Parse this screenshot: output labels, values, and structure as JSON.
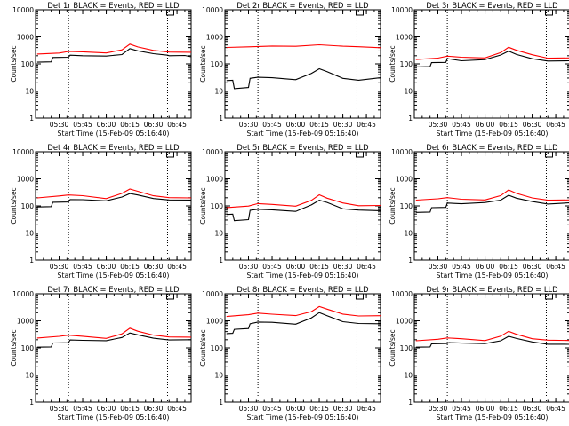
{
  "figure": {
    "colors": {
      "events": "#000000",
      "lld": "#ff0000",
      "axis": "#000000",
      "background": "#ffffff"
    }
  },
  "chart_data": [
    {
      "type": "line",
      "title": "Det 1r BLACK = Events, RED = LLD",
      "xlabel": "Start Time (15-Feb-09 05:16:40)",
      "ylabel": "Counts/sec",
      "yscale": "log",
      "ylim": [
        1,
        10000
      ],
      "yticks": [
        "1",
        "10",
        "100",
        "1000",
        "10000"
      ],
      "xlim": [
        5.25,
        6.9
      ],
      "xticks": [
        "05:30",
        "05:45",
        "06:00",
        "06:15",
        "06:30",
        "06:45"
      ],
      "dotted_vlines": [
        "05:36",
        "06:39"
      ],
      "series": [
        {
          "x": [
            "05:16",
            "05:25",
            "05:26",
            "05:36",
            "05:37",
            "05:45",
            "06:00",
            "06:10",
            "06:15",
            "06:20",
            "06:30",
            "06:39",
            "06:40",
            "06:50",
            "06:54"
          ],
          "values": [
            120,
            120,
            170,
            170,
            215,
            200,
            190,
            230,
            370,
            300,
            230,
            215,
            200,
            200,
            190
          ]
        },
        {
          "x": [
            "05:16",
            "05:30",
            "05:36",
            "05:45",
            "06:00",
            "06:10",
            "06:15",
            "06:20",
            "06:30",
            "06:40",
            "06:54"
          ],
          "values": [
            240,
            255,
            285,
            270,
            260,
            330,
            520,
            440,
            320,
            270,
            260
          ]
        }
      ]
    },
    {
      "type": "line",
      "title": "Det 2r BLACK = Events, RED = LLD",
      "xlabel": "Start Time (15-Feb-09 05:16:40)",
      "ylabel": "Counts/sec",
      "yscale": "log",
      "ylim": [
        1,
        10000
      ],
      "yticks": [
        "1",
        "10",
        "100",
        "1000",
        "10000"
      ],
      "xlim": [
        5.25,
        6.9
      ],
      "xticks": [
        "05:30",
        "05:45",
        "06:00",
        "06:15",
        "06:30",
        "06:45"
      ],
      "dotted_vlines": [
        "05:36",
        "06:39"
      ],
      "series": [
        {
          "x": [
            "05:16",
            "05:20",
            "05:21",
            "05:30",
            "05:31",
            "05:36",
            "05:45",
            "06:00",
            "06:10",
            "06:15",
            "06:20",
            "06:30",
            "06:40",
            "06:54"
          ],
          "values": [
            25,
            25,
            12,
            13,
            30,
            32,
            30,
            27,
            45,
            65,
            50,
            30,
            25,
            30
          ]
        },
        {
          "x": [
            "05:16",
            "05:30",
            "05:45",
            "06:00",
            "06:15",
            "06:30",
            "06:40",
            "06:54"
          ],
          "values": [
            420,
            430,
            450,
            430,
            520,
            450,
            420,
            410
          ]
        }
      ]
    },
    {
      "type": "line",
      "title": "Det 3r BLACK = Events, RED = LLD",
      "xlabel": "Start Time (15-Feb-09 05:16:40)",
      "ylabel": "Counts/sec",
      "yscale": "log",
      "ylim": [
        1,
        10000
      ],
      "yticks": [
        "1",
        "10",
        "100",
        "1000",
        "10000"
      ],
      "xlim": [
        5.25,
        6.9
      ],
      "xticks": [
        "05:30",
        "05:45",
        "06:00",
        "06:15",
        "06:30",
        "06:45"
      ],
      "dotted_vlines": [
        "05:36",
        "06:39"
      ],
      "series": [
        {
          "x": [
            "05:16",
            "05:25",
            "05:26",
            "05:35",
            "05:36",
            "05:45",
            "06:00",
            "06:10",
            "06:15",
            "06:20",
            "06:30",
            "06:40",
            "06:54"
          ],
          "values": [
            80,
            80,
            110,
            110,
            160,
            130,
            140,
            220,
            300,
            220,
            150,
            130,
            130
          ]
        },
        {
          "x": [
            "05:16",
            "05:30",
            "05:36",
            "05:45",
            "06:00",
            "06:10",
            "06:15",
            "06:20",
            "06:30",
            "06:40",
            "06:54"
          ],
          "values": [
            150,
            165,
            190,
            170,
            170,
            260,
            400,
            330,
            220,
            160,
            160
          ]
        }
      ]
    },
    {
      "type": "line",
      "title": "Det 4r BLACK = Events, RED = LLD",
      "xlabel": "Start Time (15-Feb-09 05:16:40)",
      "ylabel": "Counts/sec",
      "yscale": "log",
      "ylim": [
        1,
        10000
      ],
      "yticks": [
        "1",
        "10",
        "100",
        "1000",
        "10000"
      ],
      "xlim": [
        5.25,
        6.9
      ],
      "xticks": [
        "05:30",
        "05:45",
        "06:00",
        "06:15",
        "06:30",
        "06:45"
      ],
      "dotted_vlines": [
        "05:36",
        "06:39"
      ],
      "series": [
        {
          "x": [
            "05:16",
            "05:25",
            "05:26",
            "05:36",
            "05:37",
            "05:45",
            "06:00",
            "06:10",
            "06:15",
            "06:20",
            "06:30",
            "06:40",
            "06:54"
          ],
          "values": [
            95,
            95,
            135,
            135,
            175,
            170,
            150,
            220,
            290,
            250,
            180,
            170,
            165
          ]
        },
        {
          "x": [
            "05:16",
            "05:30",
            "05:36",
            "05:45",
            "06:00",
            "06:10",
            "06:15",
            "06:20",
            "06:30",
            "06:40",
            "06:54"
          ],
          "values": [
            205,
            235,
            250,
            230,
            190,
            290,
            410,
            360,
            240,
            200,
            190
          ]
        }
      ]
    },
    {
      "type": "line",
      "title": "Det 5r BLACK = Events, RED = LLD",
      "xlabel": "Start Time (15-Feb-09 05:16:40)",
      "ylabel": "Counts/sec",
      "yscale": "log",
      "ylim": [
        1,
        10000
      ],
      "yticks": [
        "1",
        "10",
        "100",
        "1000",
        "10000"
      ],
      "xlim": [
        5.25,
        6.9
      ],
      "xticks": [
        "05:30",
        "05:45",
        "06:00",
        "06:15",
        "06:30",
        "06:45"
      ],
      "dotted_vlines": [
        "05:36",
        "06:39"
      ],
      "series": [
        {
          "x": [
            "05:16",
            "05:20",
            "05:21",
            "05:30",
            "05:31",
            "05:36",
            "05:45",
            "06:00",
            "06:10",
            "06:15",
            "06:20",
            "06:30",
            "06:40",
            "06:54"
          ],
          "values": [
            50,
            50,
            28,
            30,
            70,
            75,
            70,
            65,
            110,
            160,
            130,
            80,
            70,
            65
          ]
        },
        {
          "x": [
            "05:16",
            "05:30",
            "05:36",
            "05:45",
            "06:00",
            "06:10",
            "06:15",
            "06:20",
            "06:30",
            "06:40",
            "06:54"
          ],
          "values": [
            90,
            100,
            120,
            110,
            100,
            160,
            250,
            200,
            130,
            100,
            100
          ]
        }
      ]
    },
    {
      "type": "line",
      "title": "Det 6r BLACK = Events, RED = LLD",
      "xlabel": "Start Time (15-Feb-09 05:16:40)",
      "ylabel": "Counts/sec",
      "yscale": "log",
      "ylim": [
        1,
        10000
      ],
      "yticks": [
        "1",
        "10",
        "100",
        "1000",
        "10000"
      ],
      "xlim": [
        5.25,
        6.9
      ],
      "xticks": [
        "05:30",
        "05:45",
        "06:00",
        "06:15",
        "06:30",
        "06:45"
      ],
      "dotted_vlines": [
        "05:36",
        "06:39"
      ],
      "series": [
        {
          "x": [
            "05:16",
            "05:25",
            "05:26",
            "05:35",
            "05:36",
            "05:45",
            "06:00",
            "06:10",
            "06:15",
            "06:20",
            "06:30",
            "06:40",
            "06:54"
          ],
          "values": [
            60,
            60,
            85,
            85,
            130,
            120,
            130,
            170,
            250,
            190,
            140,
            120,
            130
          ]
        },
        {
          "x": [
            "05:16",
            "05:30",
            "05:36",
            "05:45",
            "06:00",
            "06:10",
            "06:15",
            "06:20",
            "06:30",
            "06:40",
            "06:54"
          ],
          "values": [
            170,
            185,
            200,
            170,
            170,
            240,
            380,
            300,
            200,
            160,
            160
          ]
        }
      ]
    },
    {
      "type": "line",
      "title": "Det 7r BLACK = Events, RED = LLD",
      "xlabel": "Start Time (15-Feb-09 05:16:40)",
      "ylabel": "Counts/sec",
      "yscale": "log",
      "ylim": [
        1,
        10000
      ],
      "yticks": [
        "1",
        "10",
        "100",
        "1000",
        "10000"
      ],
      "xlim": [
        5.25,
        6.9
      ],
      "xticks": [
        "05:30",
        "05:45",
        "06:00",
        "06:15",
        "06:30",
        "06:45"
      ],
      "dotted_vlines": [
        "05:36",
        "06:39"
      ],
      "series": [
        {
          "x": [
            "05:16",
            "05:25",
            "05:26",
            "05:36",
            "05:37",
            "05:45",
            "06:00",
            "06:10",
            "06:15",
            "06:20",
            "06:30",
            "06:40",
            "06:54"
          ],
          "values": [
            110,
            110,
            150,
            150,
            200,
            190,
            180,
            250,
            360,
            300,
            220,
            200,
            200
          ]
        },
        {
          "x": [
            "05:16",
            "05:30",
            "05:36",
            "05:45",
            "06:00",
            "06:10",
            "06:15",
            "06:20",
            "06:30",
            "06:40",
            "06:54"
          ],
          "values": [
            240,
            270,
            290,
            260,
            230,
            330,
            520,
            430,
            300,
            250,
            240
          ]
        }
      ]
    },
    {
      "type": "line",
      "title": "Det 8r BLACK = Events, RED = LLD",
      "xlabel": "Start Time (15-Feb-09 05:16:40)",
      "ylabel": "Counts/sec",
      "yscale": "log",
      "ylim": [
        1,
        10000
      ],
      "yticks": [
        "1",
        "10",
        "100",
        "1000",
        "10000"
      ],
      "xlim": [
        5.25,
        6.9
      ],
      "xticks": [
        "05:30",
        "05:45",
        "06:00",
        "06:15",
        "06:30",
        "06:45"
      ],
      "dotted_vlines": [
        "05:36",
        "06:39"
      ],
      "series": [
        {
          "x": [
            "05:16",
            "05:20",
            "05:21",
            "05:30",
            "05:31",
            "05:36",
            "05:45",
            "06:00",
            "06:10",
            "06:15",
            "06:20",
            "06:30",
            "06:40",
            "06:54"
          ],
          "values": [
            350,
            350,
            480,
            500,
            800,
            900,
            860,
            780,
            1300,
            2000,
            1500,
            950,
            800,
            760
          ]
        },
        {
          "x": [
            "05:16",
            "05:30",
            "05:36",
            "05:45",
            "06:00",
            "06:10",
            "06:15",
            "06:20",
            "06:30",
            "06:40",
            "06:54"
          ],
          "values": [
            1500,
            1700,
            1900,
            1700,
            1600,
            2200,
            3300,
            2800,
            1800,
            1500,
            1500
          ]
        }
      ]
    },
    {
      "type": "line",
      "title": "Det 9r BLACK = Events, RED = LLD",
      "xlabel": "Start Time (15-Feb-09 05:16:40)",
      "ylabel": "Counts/sec",
      "yscale": "log",
      "ylim": [
        1,
        10000
      ],
      "yticks": [
        "1",
        "10",
        "100",
        "1000",
        "10000"
      ],
      "xlim": [
        5.25,
        6.9
      ],
      "xticks": [
        "05:30",
        "05:45",
        "06:00",
        "06:15",
        "06:30",
        "06:45"
      ],
      "dotted_vlines": [
        "05:36",
        "06:39"
      ],
      "series": [
        {
          "x": [
            "05:16",
            "05:25",
            "05:26",
            "05:36",
            "05:37",
            "05:45",
            "06:00",
            "06:10",
            "06:15",
            "06:20",
            "06:30",
            "06:40",
            "06:54"
          ],
          "values": [
            110,
            110,
            140,
            140,
            160,
            150,
            140,
            190,
            270,
            220,
            160,
            140,
            135
          ]
        },
        {
          "x": [
            "05:16",
            "05:30",
            "05:36",
            "05:45",
            "06:00",
            "06:10",
            "06:15",
            "06:20",
            "06:30",
            "06:40",
            "06:54"
          ],
          "values": [
            190,
            210,
            230,
            210,
            190,
            270,
            400,
            330,
            220,
            190,
            180
          ]
        }
      ]
    }
  ]
}
